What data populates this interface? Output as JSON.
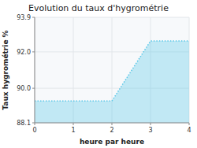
{
  "chart_data": {
    "type": "area",
    "title": "Evolution du taux d'hygrométrie",
    "x_label": "heure par heure",
    "y_label": "Taux hygrométrie %",
    "x": [
      0,
      1,
      2,
      3,
      4
    ],
    "values": [
      89.3,
      89.3,
      89.3,
      92.6,
      92.6
    ],
    "color": "#5bc8e8",
    "line_style": "dotted",
    "xlim": [
      0,
      4
    ],
    "ylim": [
      88.1,
      93.9
    ],
    "xticks": [
      0,
      1,
      2,
      3,
      4
    ],
    "yticks": [
      88.1,
      {
        "value": 90,
        "label": "90.0"
      },
      {
        "value": 92,
        "label": "92.0"
      },
      93.9
    ],
    "grid": true
  }
}
